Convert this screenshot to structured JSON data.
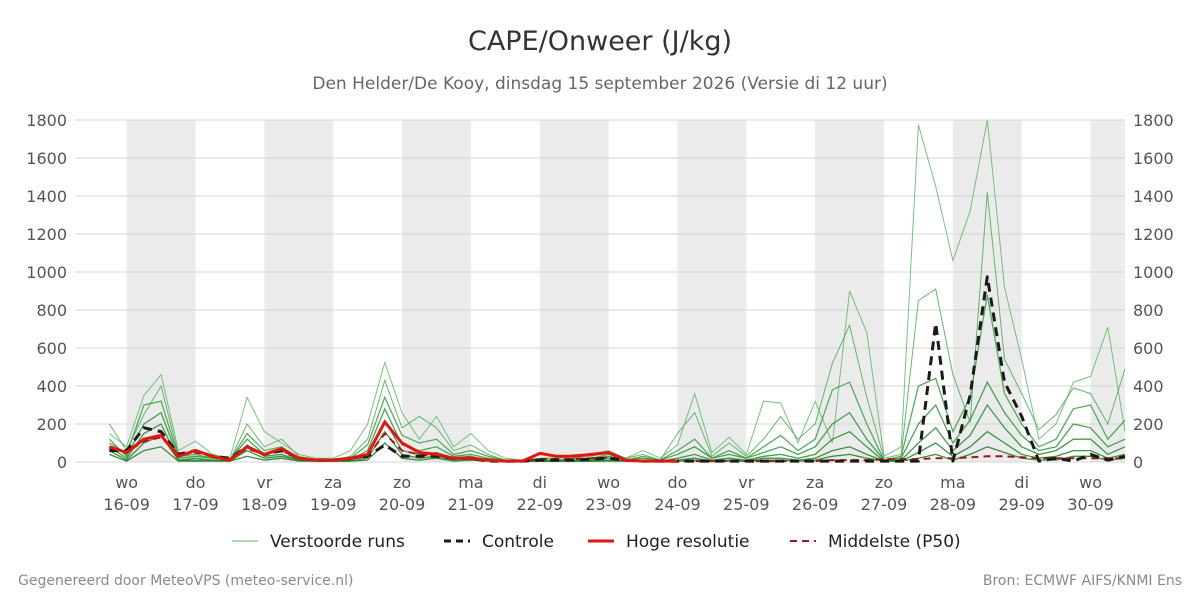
{
  "chart_data": {
    "type": "line",
    "title": "CAPE/Onweer (J/kg)",
    "subtitle": "Den Helder/De Kooy, dinsdag 15 september 2026 (Versie di 12 uur)",
    "ylim": [
      0,
      1800
    ],
    "y_ticks": [
      0,
      200,
      400,
      600,
      800,
      1000,
      1200,
      1400,
      1600,
      1800
    ],
    "x_range_days": [
      -0.75,
      14.5
    ],
    "x_ticks": [
      {
        "day": "wo",
        "date": "16-09"
      },
      {
        "day": "do",
        "date": "17-09"
      },
      {
        "day": "vr",
        "date": "18-09"
      },
      {
        "day": "za",
        "date": "19-09"
      },
      {
        "day": "zo",
        "date": "20-09"
      },
      {
        "day": "ma",
        "date": "21-09"
      },
      {
        "day": "di",
        "date": "22-09"
      },
      {
        "day": "wo",
        "date": "23-09"
      },
      {
        "day": "do",
        "date": "24-09"
      },
      {
        "day": "vr",
        "date": "25-09"
      },
      {
        "day": "za",
        "date": "26-09"
      },
      {
        "day": "zo",
        "date": "27-09"
      },
      {
        "day": "ma",
        "date": "28-09"
      },
      {
        "day": "di",
        "date": "29-09"
      },
      {
        "day": "wo",
        "date": "30-09"
      }
    ],
    "grid": true,
    "shaded_days": [
      0,
      2,
      4,
      6,
      8,
      10,
      12,
      14
    ],
    "legend_position": "bottom",
    "series": [
      {
        "name": "Hoge resolutie",
        "color": "#e3150f",
        "style": "solid",
        "x": [
          -0.25,
          0,
          0.25,
          0.5,
          0.75,
          1,
          1.25,
          1.5,
          1.75,
          2,
          2.25,
          2.5,
          2.75,
          3,
          3.25,
          3.5,
          3.75,
          4,
          4.25,
          4.5,
          4.75,
          5,
          5.25,
          5.5,
          5.75,
          6,
          6.25,
          6.5,
          6.75,
          7,
          7.25,
          7.5,
          7.75,
          8
        ],
        "values": [
          80,
          50,
          120,
          140,
          30,
          60,
          30,
          10,
          80,
          40,
          70,
          20,
          10,
          10,
          20,
          40,
          210,
          100,
          50,
          40,
          20,
          20,
          10,
          5,
          5,
          45,
          30,
          30,
          40,
          50,
          10,
          5,
          5,
          5
        ]
      },
      {
        "name": "Controle",
        "color": "#1a1a1a",
        "style": "dashed",
        "x": [
          -0.25,
          0,
          0.25,
          0.5,
          0.75,
          1,
          1.25,
          1.5,
          1.75,
          2,
          2.25,
          2.5,
          2.75,
          3,
          3.25,
          3.5,
          3.75,
          4,
          4.25,
          4.5,
          4.75,
          5,
          5.25,
          5.5,
          5.75,
          6,
          6.25,
          6.5,
          6.75,
          7,
          7.25,
          7.5,
          7.75,
          8,
          8.25,
          8.5,
          8.75,
          9,
          9.25,
          9.5,
          9.75,
          10,
          10.25,
          10.5,
          10.75,
          11,
          11.25,
          11.5,
          11.75,
          12,
          12.25,
          12.5,
          12.75,
          13,
          13.25,
          13.5,
          13.75,
          14,
          14.25,
          14.5
        ],
        "values": [
          60,
          60,
          180,
          160,
          40,
          60,
          30,
          20,
          80,
          40,
          60,
          20,
          10,
          10,
          20,
          30,
          90,
          30,
          30,
          30,
          20,
          20,
          5,
          5,
          5,
          10,
          10,
          10,
          15,
          20,
          10,
          5,
          5,
          5,
          5,
          5,
          5,
          5,
          5,
          5,
          5,
          5,
          5,
          5,
          5,
          5,
          5,
          5,
          730,
          5,
          350,
          975,
          420,
          240,
          5,
          20,
          5,
          40,
          10,
          30
        ]
      },
      {
        "name": "Middelste (P50)",
        "color": "#a31515",
        "style": "dashed",
        "x": [
          -0.25,
          0,
          0.25,
          0.5,
          0.75,
          1,
          1.25,
          1.5,
          1.75,
          2,
          2.25,
          2.5,
          2.75,
          3,
          3.25,
          3.5,
          3.75,
          4,
          4.25,
          4.5,
          4.75,
          5,
          5.25,
          5.5,
          5.75,
          6,
          6.25,
          6.5,
          6.75,
          7,
          7.25,
          7.5,
          7.75,
          8,
          8.25,
          8.5,
          8.75,
          9,
          9.25,
          9.5,
          9.75,
          10,
          10.25,
          10.5,
          10.75,
          11,
          11.25,
          11.5,
          11.75,
          12,
          12.25,
          12.5,
          12.75,
          13,
          13.25,
          13.5,
          13.75,
          14,
          14.25,
          14.5
        ],
        "values": [
          70,
          50,
          110,
          130,
          40,
          50,
          30,
          15,
          70,
          40,
          60,
          20,
          10,
          10,
          15,
          30,
          150,
          60,
          40,
          30,
          20,
          15,
          10,
          5,
          5,
          15,
          15,
          15,
          20,
          25,
          10,
          5,
          5,
          5,
          5,
          5,
          5,
          5,
          5,
          5,
          5,
          5,
          10,
          10,
          10,
          15,
          15,
          15,
          20,
          20,
          25,
          30,
          30,
          25,
          20,
          20,
          20,
          20,
          20,
          20
        ]
      },
      {
        "name": "Verstoorde runs",
        "color": "#2e9e3e",
        "style": "thin",
        "note_members": "ensemble members",
        "x": [
          -0.25,
          0,
          0.25,
          0.5,
          0.75,
          1,
          1.25,
          1.5,
          1.75,
          2,
          2.25,
          2.5,
          2.75,
          3,
          3.25,
          3.5,
          3.75,
          4,
          4.25,
          4.5,
          4.75,
          5,
          5.25,
          5.5,
          5.75,
          6,
          6.25,
          6.5,
          6.75,
          7,
          7.25,
          7.5,
          7.75,
          8,
          8.25,
          8.5,
          8.75,
          9,
          9.25,
          9.5,
          9.75,
          10,
          10.25,
          10.5,
          10.75,
          11,
          11.25,
          11.5,
          11.75,
          12,
          12.25,
          12.5,
          12.75,
          13,
          13.25,
          13.5,
          13.75,
          14,
          14.25,
          14.5
        ],
        "members": [
          [
            150,
            80,
            350,
            460,
            60,
            110,
            40,
            20,
            340,
            160,
            100,
            40,
            20,
            20,
            60,
            200,
            525,
            260,
            120,
            240,
            80,
            150,
            60,
            20,
            10,
            20,
            20,
            40,
            40,
            60,
            20,
            60,
            20,
            90,
            360,
            50,
            130,
            40,
            320,
            310,
            100,
            320,
            100,
            900,
            680,
            30,
            80,
            1775,
            1450,
            1060,
            1320,
            1800,
            920,
            540,
            120,
            200,
            420,
            450,
            710,
            160
          ],
          [
            200,
            60,
            250,
            400,
            40,
            60,
            30,
            10,
            200,
            80,
            120,
            30,
            10,
            10,
            30,
            120,
            430,
            180,
            240,
            180,
            60,
            90,
            40,
            10,
            10,
            20,
            20,
            30,
            30,
            50,
            20,
            40,
            10,
            150,
            260,
            30,
            100,
            30,
            120,
            240,
            120,
            200,
            520,
            720,
            340,
            20,
            40,
            850,
            910,
            460,
            210,
            1420,
            540,
            360,
            170,
            250,
            390,
            360,
            200,
            490
          ],
          [
            100,
            40,
            300,
            320,
            30,
            40,
            20,
            10,
            150,
            60,
            80,
            20,
            10,
            10,
            20,
            90,
            340,
            140,
            100,
            120,
            40,
            60,
            30,
            10,
            5,
            10,
            10,
            20,
            20,
            40,
            10,
            30,
            10,
            60,
            120,
            20,
            60,
            20,
            80,
            140,
            60,
            120,
            380,
            420,
            200,
            10,
            30,
            400,
            440,
            160,
            340,
            880,
            360,
            200,
            80,
            120,
            280,
            300,
            120,
            220
          ],
          [
            120,
            30,
            200,
            260,
            20,
            30,
            20,
            10,
            120,
            40,
            60,
            20,
            10,
            10,
            10,
            60,
            280,
            90,
            60,
            80,
            30,
            40,
            20,
            10,
            5,
            10,
            10,
            10,
            10,
            30,
            10,
            20,
            10,
            40,
            80,
            20,
            40,
            20,
            50,
            80,
            40,
            80,
            200,
            260,
            120,
            10,
            20,
            200,
            300,
            100,
            220,
            420,
            260,
            140,
            60,
            80,
            200,
            180,
            80,
            120
          ],
          [
            80,
            20,
            150,
            200,
            10,
            20,
            10,
            5,
            90,
            30,
            40,
            10,
            5,
            5,
            10,
            40,
            220,
            60,
            40,
            50,
            20,
            30,
            10,
            5,
            5,
            5,
            5,
            10,
            10,
            20,
            5,
            10,
            5,
            20,
            40,
            10,
            20,
            10,
            30,
            40,
            20,
            40,
            120,
            160,
            80,
            5,
            10,
            100,
            180,
            60,
            140,
            300,
            180,
            80,
            40,
            60,
            120,
            120,
            40,
            80
          ],
          [
            60,
            10,
            100,
            140,
            10,
            10,
            10,
            5,
            60,
            20,
            30,
            10,
            5,
            5,
            5,
            20,
            160,
            40,
            20,
            30,
            10,
            20,
            10,
            5,
            5,
            5,
            5,
            5,
            5,
            10,
            5,
            5,
            5,
            10,
            20,
            5,
            10,
            5,
            20,
            20,
            10,
            20,
            60,
            80,
            40,
            5,
            5,
            50,
            100,
            30,
            80,
            160,
            100,
            40,
            20,
            30,
            60,
            60,
            20,
            40
          ],
          [
            40,
            5,
            60,
            80,
            5,
            5,
            5,
            5,
            30,
            10,
            20,
            5,
            5,
            5,
            5,
            10,
            100,
            20,
            10,
            20,
            5,
            10,
            5,
            5,
            5,
            5,
            5,
            5,
            5,
            5,
            5,
            5,
            5,
            5,
            10,
            5,
            5,
            5,
            10,
            10,
            5,
            10,
            30,
            40,
            20,
            5,
            5,
            20,
            40,
            10,
            40,
            80,
            50,
            20,
            10,
            10,
            30,
            30,
            10,
            20
          ]
        ]
      }
    ],
    "legend": [
      {
        "label": "Verstoorde runs",
        "style": "thin",
        "color": "#5bb85f"
      },
      {
        "label": "Controle",
        "style": "dashed",
        "color": "#1a1a1a"
      },
      {
        "label": "Hoge resolutie",
        "style": "solid",
        "color": "#e3150f"
      },
      {
        "label": "Middelste (P50)",
        "style": "dashed",
        "color": "#a31515"
      }
    ]
  },
  "footer": {
    "left": "Gegenereerd door MeteoVPS (meteo-service.nl)",
    "right": "Bron: ECMWF AIFS/KNMI Ens"
  }
}
